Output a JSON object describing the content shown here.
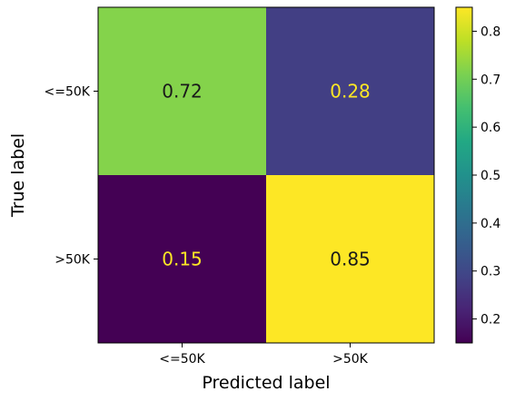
{
  "chart_data": {
    "type": "heatmap",
    "title": "",
    "xlabel": "Predicted label",
    "ylabel": "True label",
    "x_categories": [
      "<=50K",
      ">50K"
    ],
    "y_categories": [
      "<=50K",
      ">50K"
    ],
    "values": [
      [
        0.72,
        0.28
      ],
      [
        0.15,
        0.85
      ]
    ],
    "value_labels": [
      [
        "0.72",
        "0.28"
      ],
      [
        "0.15",
        "0.85"
      ]
    ],
    "colormap": "viridis",
    "colorbar": {
      "range": [
        0.15,
        0.85
      ],
      "ticks": [
        0.2,
        0.3,
        0.4,
        0.5,
        0.6,
        0.7,
        0.8
      ],
      "tick_labels": [
        "0.2",
        "0.3",
        "0.4",
        "0.5",
        "0.6",
        "0.7",
        "0.8"
      ]
    },
    "grid": false
  },
  "colors": {
    "high_text": "#1a1a1a",
    "low_text": "#fde725"
  }
}
